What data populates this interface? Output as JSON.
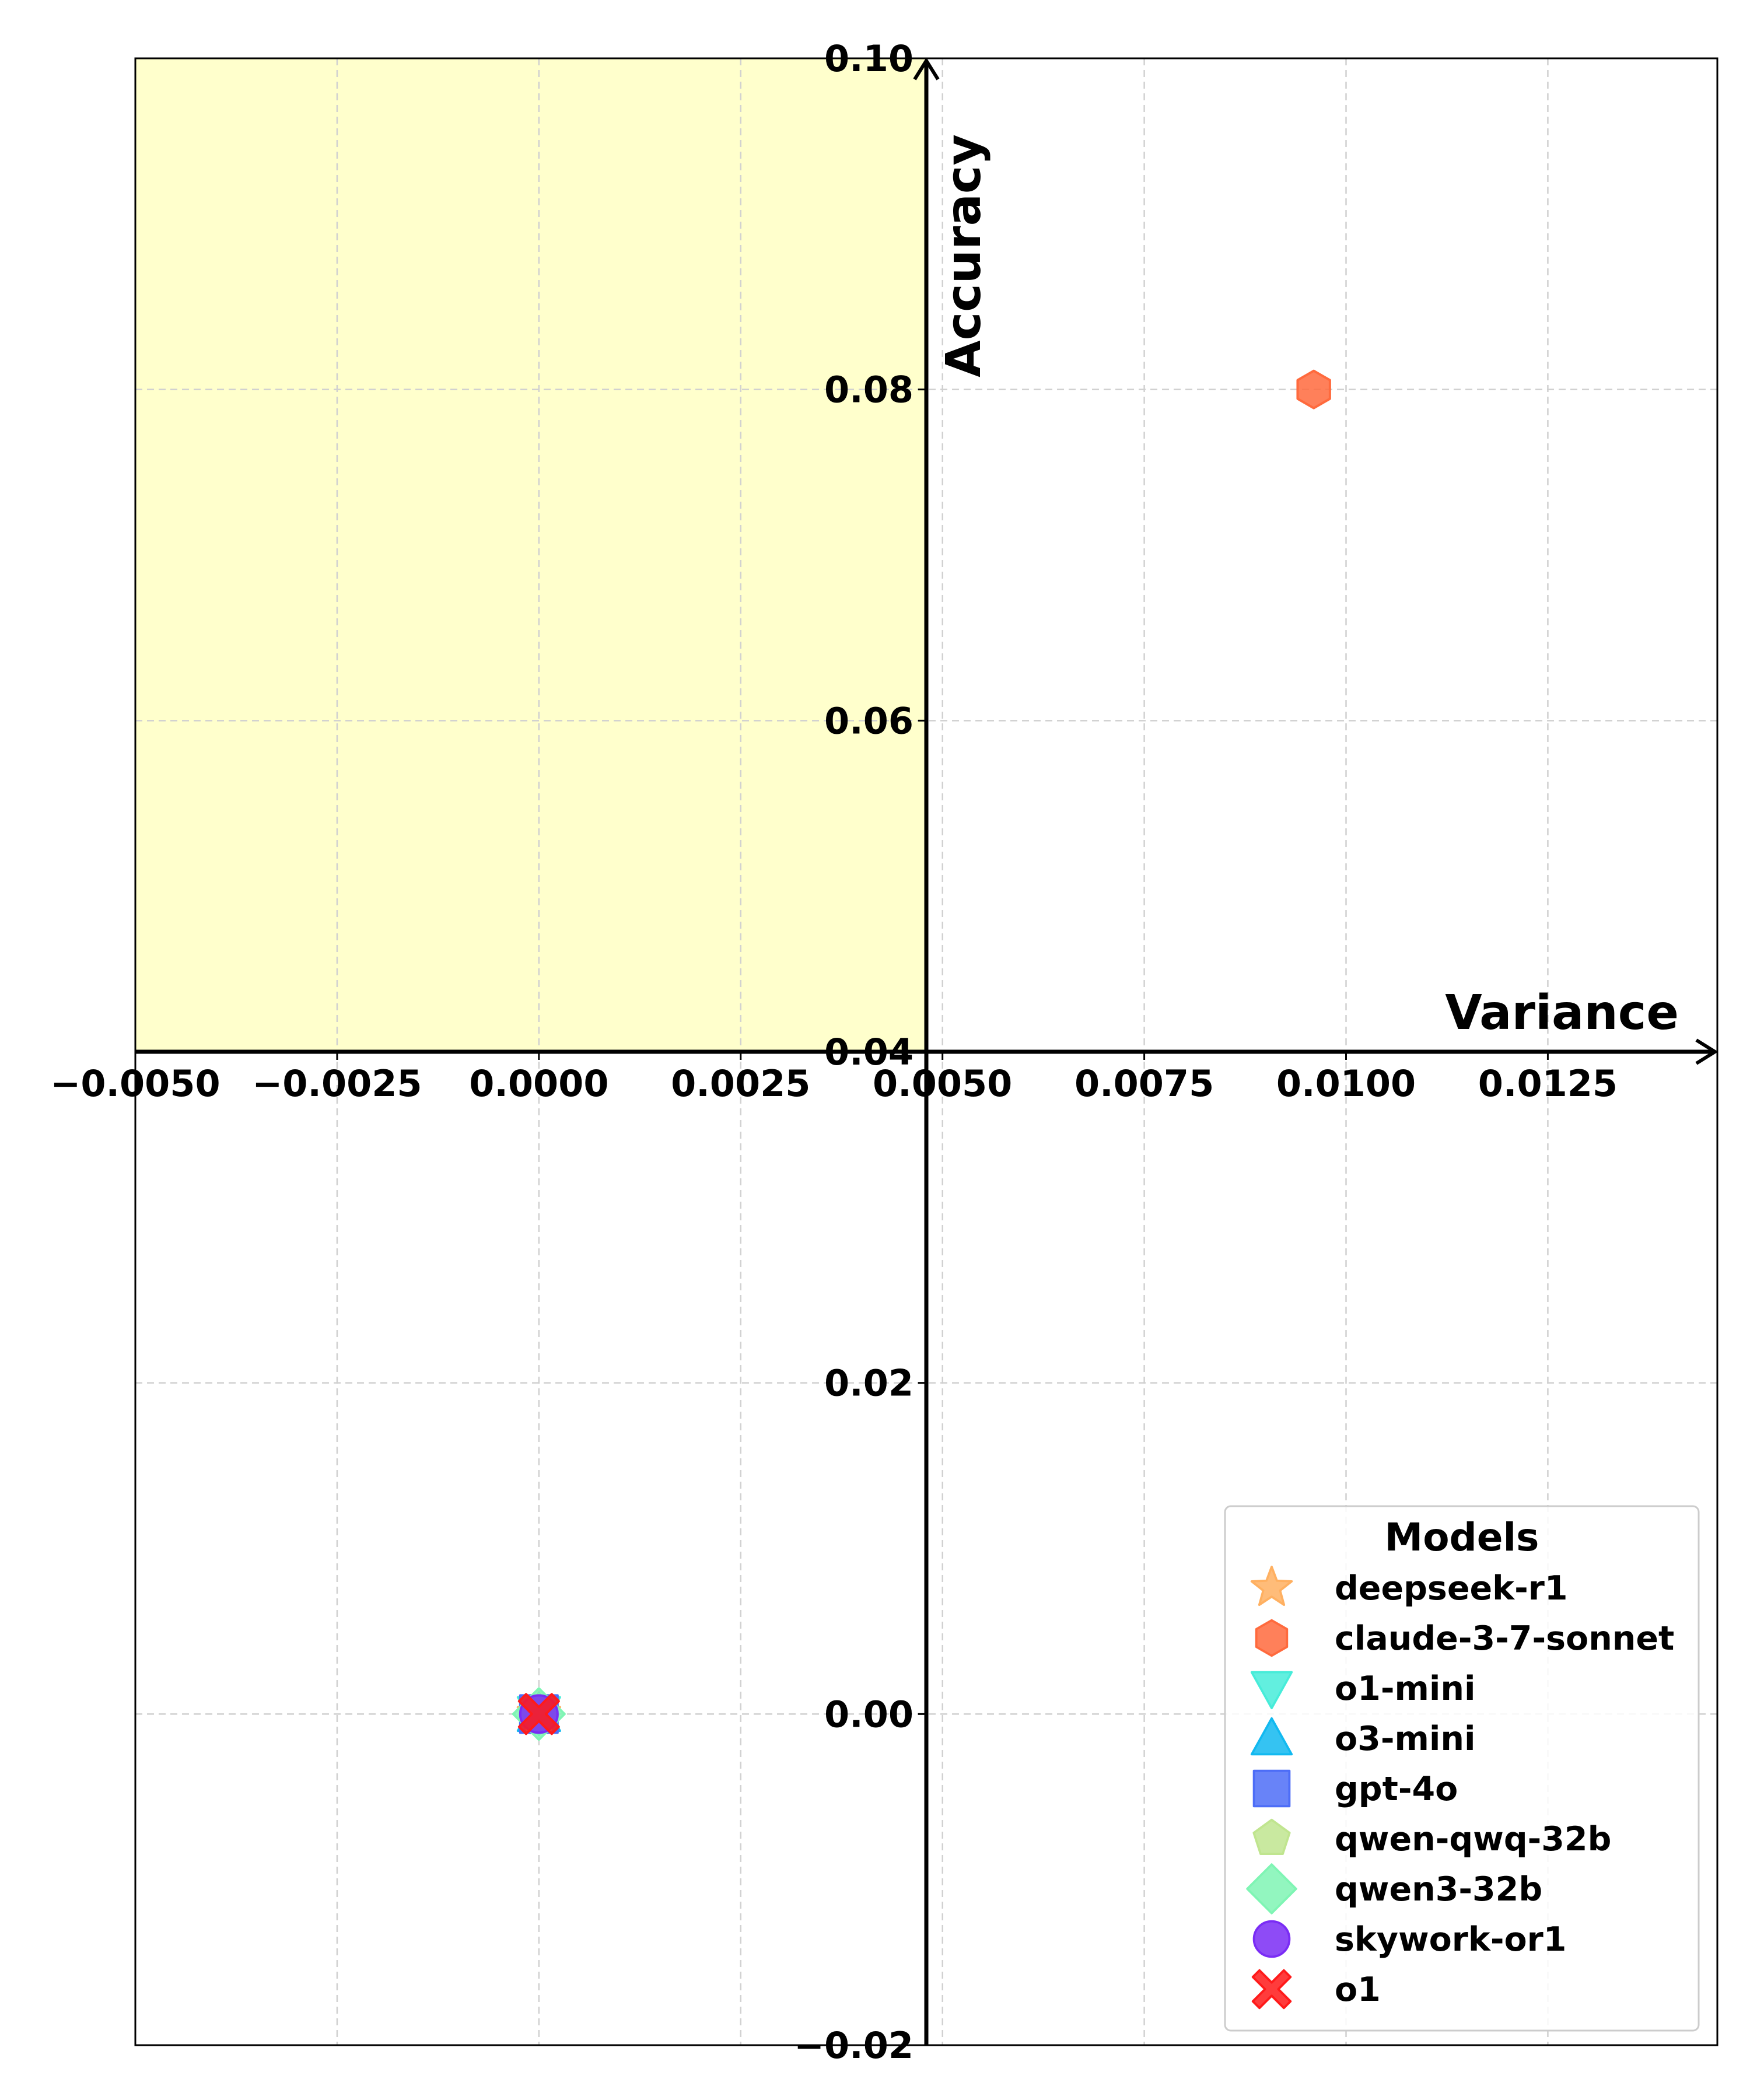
{
  "chart_data": {
    "type": "scatter",
    "xlabel": "Variance",
    "ylabel": "Accuracy",
    "xlim": [
      -0.005,
      0.0146
    ],
    "ylim": [
      -0.02,
      0.1
    ],
    "x_ticks": [
      -0.005,
      -0.0025,
      0.0,
      0.0025,
      0.005,
      0.0075,
      0.01,
      0.0125
    ],
    "x_tick_labels": [
      "−0.0050",
      "−0.0025",
      "0.0000",
      "0.0025",
      "0.0050",
      "0.0075",
      "0.0100",
      "0.0125"
    ],
    "y_ticks": [
      -0.02,
      0.0,
      0.02,
      0.04,
      0.06,
      0.08,
      0.1
    ],
    "y_tick_labels": [
      "−0.02",
      "0.00",
      "0.02",
      "0.04",
      "0.06",
      "0.08",
      "0.10"
    ],
    "axes_cross": {
      "x": 0.0048,
      "y": 0.04
    },
    "highlight_region": {
      "x": [
        -0.005,
        0.0048
      ],
      "y": [
        0.04,
        0.1
      ],
      "color": "#ffffcc"
    },
    "grid": true,
    "legend": {
      "title": "Models",
      "placement": "bottom-right"
    },
    "series": [
      {
        "name": "deepseek-r1",
        "marker": "star",
        "color": "#ffb061",
        "x": 0.0,
        "y": 0.0
      },
      {
        "name": "claude-3-7-sonnet",
        "marker": "hexagon",
        "color": "#ff6a3d",
        "x": 0.0096,
        "y": 0.08
      },
      {
        "name": "o1-mini",
        "marker": "triangle-down",
        "color": "#47ecd9",
        "x": 0.0,
        "y": 0.0
      },
      {
        "name": "o3-mini",
        "marker": "triangle-up",
        "color": "#12b9f0",
        "x": 0.0,
        "y": 0.0
      },
      {
        "name": "gpt-4o",
        "marker": "square",
        "color": "#4d6df7",
        "x": 0.0,
        "y": 0.0
      },
      {
        "name": "qwen-qwq-32b",
        "marker": "pentagon",
        "color": "#c0e58f",
        "x": 0.0,
        "y": 0.0
      },
      {
        "name": "qwen3-32b",
        "marker": "diamond",
        "color": "#7ff5b4",
        "x": 0.0,
        "y": 0.0
      },
      {
        "name": "skywork-or1",
        "marker": "circle",
        "color": "#7a2cf5",
        "x": 0.0,
        "y": 0.0
      },
      {
        "name": "o1",
        "marker": "x-filled",
        "color": "#ff1a1a",
        "x": 0.0,
        "y": 0.0
      }
    ]
  }
}
